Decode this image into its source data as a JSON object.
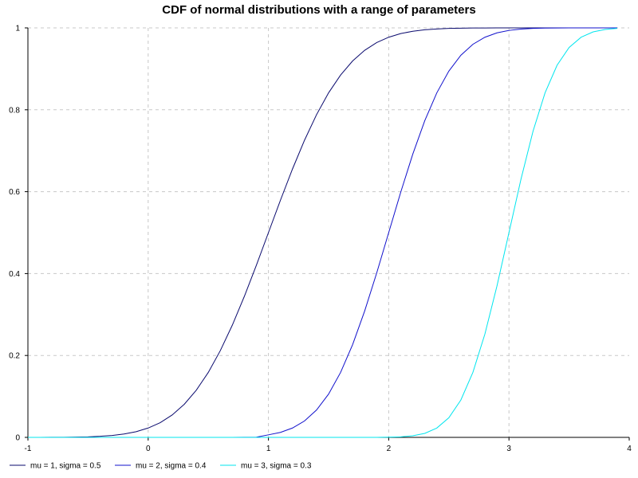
{
  "chart_data": {
    "type": "line",
    "title": "CDF of normal distributions with a range of parameters",
    "xlabel": "",
    "ylabel": "",
    "xlim": [
      -1,
      4
    ],
    "ylim": [
      0,
      1
    ],
    "x_ticks": [
      -1,
      0,
      1,
      2,
      3,
      4
    ],
    "x_tick_labels": [
      "-1",
      "0",
      "1",
      "2",
      "3",
      "4"
    ],
    "y_ticks": [
      0,
      0.2,
      0.4,
      0.6,
      0.8,
      1
    ],
    "y_tick_labels": [
      "0",
      "0.2",
      "0.4",
      "0.6",
      "0.8",
      "1"
    ],
    "grid": true,
    "legend_position": "bottom",
    "x": [
      -1.0,
      -0.9,
      -0.8,
      -0.7,
      -0.6,
      -0.5,
      -0.4,
      -0.3,
      -0.2,
      -0.1,
      0.0,
      0.1,
      0.2,
      0.3,
      0.4,
      0.5,
      0.6,
      0.7,
      0.8,
      0.9,
      1.0,
      1.1,
      1.2,
      1.3,
      1.4,
      1.5,
      1.6,
      1.7,
      1.8,
      1.9,
      2.0,
      2.1,
      2.2,
      2.3,
      2.4,
      2.5,
      2.6,
      2.7,
      2.8,
      2.9,
      3.0,
      3.1,
      3.2,
      3.3,
      3.4,
      3.5,
      3.6,
      3.7,
      3.8,
      3.9
    ],
    "series": [
      {
        "name": "mu = 1, sigma = 0.5",
        "color": "#0a0a6e",
        "values": [
          0.0,
          0.0001,
          0.0002,
          0.0003,
          0.0007,
          0.0013,
          0.0026,
          0.0047,
          0.0082,
          0.0139,
          0.0228,
          0.0359,
          0.0548,
          0.0808,
          0.1151,
          0.1587,
          0.2119,
          0.2743,
          0.3446,
          0.4207,
          0.5,
          0.5793,
          0.6554,
          0.7257,
          0.7881,
          0.8413,
          0.8849,
          0.9192,
          0.9452,
          0.9641,
          0.9772,
          0.9861,
          0.9918,
          0.9953,
          0.9974,
          0.9987,
          0.9993,
          0.9997,
          0.9998,
          0.9999,
          1.0,
          1.0,
          1.0,
          1.0,
          1.0,
          1.0,
          1.0,
          1.0,
          1.0,
          1.0
        ]
      },
      {
        "name": "mu = 2, sigma = 0.4",
        "color": "#1010cc",
        "values": [
          0.0,
          0.0,
          0.0,
          0.0,
          0.0,
          0.0,
          0.0,
          0.0,
          0.0,
          0.0,
          0.0,
          0.0,
          0.0,
          0.0,
          0.0,
          0.0,
          0.0,
          0.0001,
          0.0002,
          0.0005,
          0.0062,
          0.0122,
          0.0228,
          0.0401,
          0.0668,
          0.1056,
          0.1587,
          0.2266,
          0.3085,
          0.4013,
          0.5,
          0.5987,
          0.6915,
          0.7734,
          0.8413,
          0.8944,
          0.9332,
          0.9599,
          0.9772,
          0.9878,
          0.9938,
          0.997,
          0.9987,
          0.9994,
          0.9998,
          0.9999,
          1.0,
          1.0,
          1.0,
          1.0
        ]
      },
      {
        "name": "mu = 3, sigma = 0.3",
        "color": "#00e5ee",
        "values": [
          0.0,
          0.0,
          0.0,
          0.0,
          0.0,
          0.0,
          0.0,
          0.0,
          0.0,
          0.0,
          0.0,
          0.0,
          0.0,
          0.0,
          0.0,
          0.0,
          0.0,
          0.0,
          0.0,
          0.0,
          0.0,
          0.0,
          0.0,
          0.0,
          0.0,
          0.0,
          0.0,
          0.0,
          0.0,
          0.0,
          0.0004,
          0.0013,
          0.0038,
          0.0098,
          0.0228,
          0.0478,
          0.0912,
          0.1587,
          0.2525,
          0.3694,
          0.5,
          0.6306,
          0.7475,
          0.8413,
          0.9088,
          0.9522,
          0.9772,
          0.9902,
          0.9962,
          0.9987
        ]
      }
    ]
  }
}
